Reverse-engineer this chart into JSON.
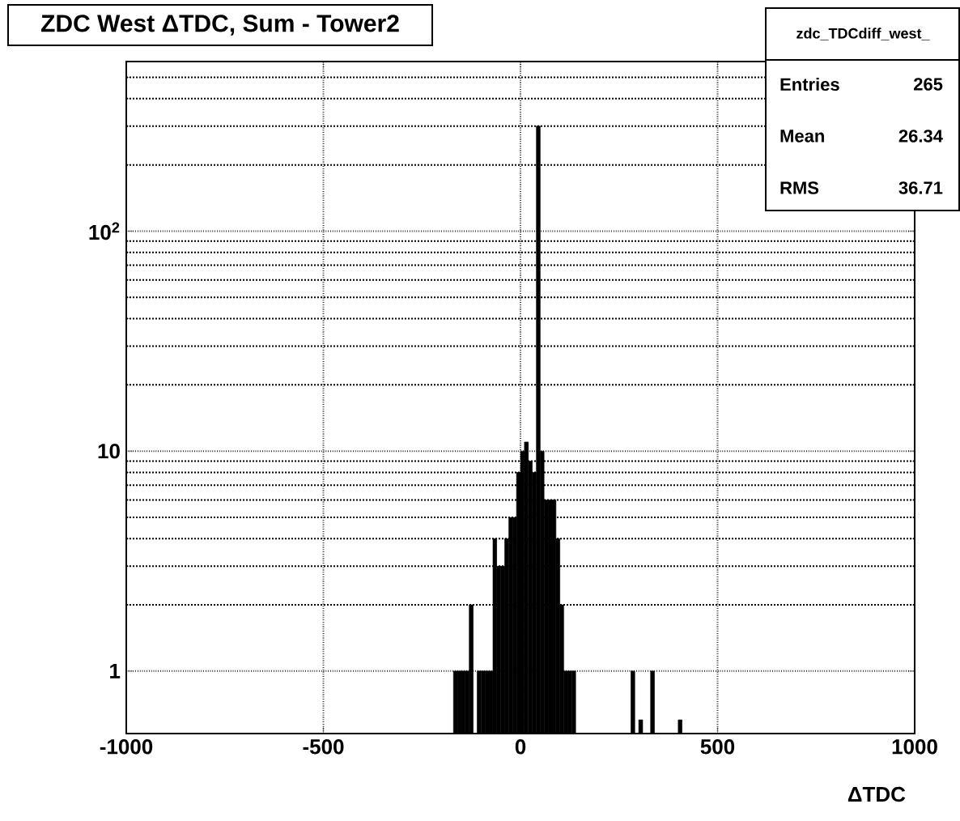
{
  "chart_data": {
    "type": "histogram",
    "title": "ZDC West ΔTDC, Sum - Tower2",
    "xlabel": "ΔTDC",
    "annotations": [
      "zdc_TDCdiff_west_",
      "Entries",
      "265",
      "Mean",
      "26.34",
      "RMS",
      "36.71"
    ],
    "bins": [
      -180,
      -170,
      -160,
      -150,
      -140,
      -130,
      -120,
      -110,
      -100,
      -90,
      -80,
      -70,
      -60,
      -50,
      -40,
      -30,
      -20,
      -10,
      0,
      10,
      20,
      30,
      40,
      50,
      60,
      70,
      80,
      90,
      100,
      110,
      120,
      130,
      140,
      150,
      160,
      170,
      180,
      190,
      200,
      210,
      220,
      230,
      240,
      250,
      260,
      270,
      280,
      290,
      300,
      310,
      320,
      330,
      340,
      350,
      360,
      370,
      380,
      390,
      400,
      410,
      420
    ],
    "values": [
      null,
      1,
      1,
      1,
      1,
      2,
      null,
      1,
      1,
      1,
      1,
      4,
      3,
      3,
      4,
      5,
      5,
      8,
      10,
      11,
      9,
      8,
      300,
      10,
      6,
      6,
      6,
      4,
      2,
      1,
      1,
      1,
      null,
      null,
      null,
      null,
      null,
      null,
      null,
      null,
      null,
      null,
      null,
      null,
      null,
      null,
      1,
      null,
      0.6,
      null,
      null,
      1,
      null,
      null,
      null,
      null,
      null,
      null,
      0.6,
      null
    ],
    "color": "#000000",
    "xlim": [
      -1000,
      1000
    ],
    "ylim": [
      0.52,
      590
    ],
    "xticks": [
      -1000,
      -500,
      0,
      500,
      1000
    ],
    "yticks": [
      1,
      10,
      {
        "value": 100,
        "label": "10$^{2}$"
      }
    ],
    "log": "y",
    "grid": true
  }
}
